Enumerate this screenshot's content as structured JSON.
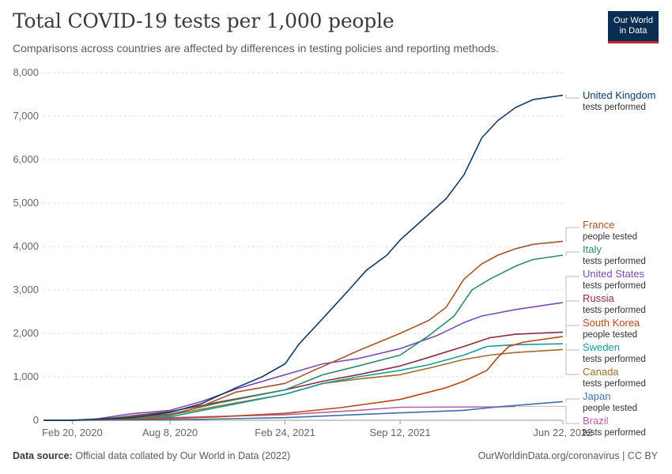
{
  "header": {
    "title": "Total COVID-19 tests per 1,000 people",
    "subtitle": "Comparisons across countries are affected by differences in testing policies and reporting methods.",
    "logo_line1": "Our World",
    "logo_line2": "in Data"
  },
  "footer": {
    "source_label": "Data source:",
    "source_text": "Official data collated by Our World in Data (2022)",
    "right_text": "OurWorldinData.org/coronavirus | CC BY"
  },
  "colors": {
    "brand": "#0a2d52",
    "accent": "#c0262d"
  },
  "chart_data": {
    "type": "line",
    "title": "Total COVID-19 tests per 1,000 people",
    "xlabel": "",
    "ylabel": "",
    "x_ticks": [
      "Feb 20, 2020",
      "Aug 8, 2020",
      "Feb 24, 2021",
      "Sep 12, 2021",
      "Jun 22, 2022"
    ],
    "y_ticks": [
      "0",
      "1,000",
      "2,000",
      "3,000",
      "4,000",
      "5,000",
      "6,000",
      "7,000",
      "8,000"
    ],
    "y_tick_values": [
      0,
      1000,
      2000,
      3000,
      4000,
      5000,
      6000,
      7000,
      8000
    ],
    "xlim": [
      "Jan 1, 2020",
      "Jun 22, 2022"
    ],
    "ylim": [
      0,
      8000
    ],
    "grid": "horizontal dashed",
    "legend": "right, labels at line ends",
    "series": [
      {
        "name": "United Kingdom",
        "note": "tests performed",
        "color": "#133a63",
        "points": [
          [
            "Jan 1, 2020",
            0
          ],
          [
            "Feb 20, 2020",
            0
          ],
          [
            "Jun 1, 2020",
            60
          ],
          [
            "Aug 8, 2020",
            180
          ],
          [
            "Oct 1, 2020",
            380
          ],
          [
            "Dec 1, 2020",
            750
          ],
          [
            "Jan 15, 2021",
            1000
          ],
          [
            "Feb 24, 2021",
            1300
          ],
          [
            "Mar 20, 2021",
            1750
          ],
          [
            "May 1, 2021",
            2350
          ],
          [
            "Jun 15, 2021",
            3000
          ],
          [
            "Jul 15, 2021",
            3450
          ],
          [
            "Aug 20, 2021",
            3800
          ],
          [
            "Sep 12, 2021",
            4150
          ],
          [
            "Oct 20, 2021",
            4600
          ],
          [
            "Dec 1, 2021",
            5100
          ],
          [
            "Jan 1, 2022",
            5650
          ],
          [
            "Feb 1, 2022",
            6500
          ],
          [
            "Mar 1, 2022",
            6900
          ],
          [
            "Apr 1, 2022",
            7200
          ],
          [
            "May 1, 2022",
            7380
          ],
          [
            "Jun 22, 2022",
            7480
          ]
        ]
      },
      {
        "name": "France",
        "note": "people tested",
        "color": "#a2562e",
        "points": [
          [
            "Jan 1, 2020",
            0
          ],
          [
            "Feb 20, 2020",
            0
          ],
          [
            "May 1, 2020",
            40
          ],
          [
            "Aug 8, 2020",
            110
          ],
          [
            "Oct 1, 2020",
            320
          ],
          [
            "Dec 1, 2020",
            650
          ],
          [
            "Feb 24, 2021",
            850
          ],
          [
            "Apr 15, 2021",
            1150
          ],
          [
            "Jul 1, 2021",
            1600
          ],
          [
            "Sep 12, 2021",
            2000
          ],
          [
            "Nov 1, 2021",
            2300
          ],
          [
            "Dec 1, 2021",
            2600
          ],
          [
            "Jan 1, 2022",
            3250
          ],
          [
            "Feb 1, 2022",
            3600
          ],
          [
            "Mar 1, 2022",
            3800
          ],
          [
            "Apr 1, 2022",
            3950
          ],
          [
            "May 1, 2022",
            4050
          ],
          [
            "Jun 22, 2022",
            4120
          ]
        ]
      },
      {
        "name": "Italy",
        "note": "tests performed",
        "color": "#2f8a67",
        "points": [
          [
            "Jan 1, 2020",
            0
          ],
          [
            "Feb 20, 2020",
            0
          ],
          [
            "Apr 15, 2020",
            40
          ],
          [
            "Aug 8, 2020",
            140
          ],
          [
            "Nov 1, 2020",
            400
          ],
          [
            "Feb 24, 2021",
            700
          ],
          [
            "May 1, 2021",
            1050
          ],
          [
            "Jul 1, 2021",
            1250
          ],
          [
            "Sep 12, 2021",
            1500
          ],
          [
            "Nov 1, 2021",
            1950
          ],
          [
            "Dec 15, 2021",
            2400
          ],
          [
            "Jan 15, 2022",
            3000
          ],
          [
            "Feb 15, 2022",
            3250
          ],
          [
            "Apr 1, 2022",
            3550
          ],
          [
            "May 1, 2022",
            3700
          ],
          [
            "Jun 22, 2022",
            3800
          ]
        ]
      },
      {
        "name": "United States",
        "note": "tests performed",
        "color": "#7a4bb3",
        "points": [
          [
            "Jan 1, 2020",
            0
          ],
          [
            "Feb 20, 2020",
            0
          ],
          [
            "Apr 1, 2020",
            30
          ],
          [
            "Jun 1, 2020",
            150
          ],
          [
            "Aug 8, 2020",
            230
          ],
          [
            "Oct 1, 2020",
            430
          ],
          [
            "Dec 1, 2020",
            720
          ],
          [
            "Feb 24, 2021",
            1050
          ],
          [
            "May 1, 2021",
            1300
          ],
          [
            "Jul 1, 2021",
            1420
          ],
          [
            "Sep 12, 2021",
            1650
          ],
          [
            "Nov 15, 2021",
            1950
          ],
          [
            "Jan 1, 2022",
            2250
          ],
          [
            "Feb 1, 2022",
            2400
          ],
          [
            "Apr 1, 2022",
            2550
          ],
          [
            "Jun 22, 2022",
            2710
          ]
        ]
      },
      {
        "name": "Russia",
        "note": "tests performed",
        "color": "#8a2d3a",
        "points": [
          [
            "Jan 1, 2020",
            0
          ],
          [
            "Feb 20, 2020",
            0
          ],
          [
            "Apr 15, 2020",
            30
          ],
          [
            "Jun 1, 2020",
            100
          ],
          [
            "Aug 8, 2020",
            200
          ],
          [
            "Nov 1, 2020",
            420
          ],
          [
            "Feb 24, 2021",
            700
          ],
          [
            "May 1, 2021",
            900
          ],
          [
            "Jul 1, 2021",
            1050
          ],
          [
            "Sep 12, 2021",
            1250
          ],
          [
            "Nov 1, 2021",
            1450
          ],
          [
            "Jan 1, 2022",
            1700
          ],
          [
            "Feb 15, 2022",
            1900
          ],
          [
            "Apr 1, 2022",
            1980
          ],
          [
            "Jun 22, 2022",
            2030
          ]
        ]
      },
      {
        "name": "South Korea",
        "note": "people tested",
        "color": "#b9451b",
        "points": [
          [
            "Jan 1, 2020",
            0
          ],
          [
            "Feb 20, 2020",
            5
          ],
          [
            "May 1, 2020",
            20
          ],
          [
            "Aug 8, 2020",
            40
          ],
          [
            "Nov 1, 2020",
            80
          ],
          [
            "Feb 24, 2021",
            160
          ],
          [
            "Jun 1, 2021",
            290
          ],
          [
            "Sep 12, 2021",
            480
          ],
          [
            "Dec 1, 2021",
            750
          ],
          [
            "Jan 1, 2022",
            900
          ],
          [
            "Feb 10, 2022",
            1150
          ],
          [
            "Mar 1, 2022",
            1450
          ],
          [
            "Mar 20, 2022",
            1700
          ],
          [
            "Apr 15, 2022",
            1800
          ],
          [
            "Jun 22, 2022",
            1930
          ]
        ]
      },
      {
        "name": "Sweden",
        "note": "tests performed",
        "color": "#189a9a",
        "points": [
          [
            "Jan 1, 2020",
            0
          ],
          [
            "Feb 20, 2020",
            0
          ],
          [
            "May 1, 2020",
            20
          ],
          [
            "Aug 8, 2020",
            80
          ],
          [
            "Nov 1, 2020",
            300
          ],
          [
            "Feb 24, 2021",
            600
          ],
          [
            "May 1, 2021",
            850
          ],
          [
            "Jul 1, 2021",
            1000
          ],
          [
            "Sep 12, 2021",
            1150
          ],
          [
            "Nov 1, 2021",
            1280
          ],
          [
            "Jan 1, 2022",
            1500
          ],
          [
            "Feb 10, 2022",
            1700
          ],
          [
            "Apr 1, 2022",
            1740
          ],
          [
            "Jun 22, 2022",
            1760
          ]
        ]
      },
      {
        "name": "Canada",
        "note": "tests performed",
        "color": "#9a6f2b",
        "points": [
          [
            "Jan 1, 2020",
            0
          ],
          [
            "Feb 20, 2020",
            0
          ],
          [
            "May 1, 2020",
            30
          ],
          [
            "Aug 8, 2020",
            120
          ],
          [
            "Nov 1, 2020",
            330
          ],
          [
            "Feb 24, 2021",
            600
          ],
          [
            "May 1, 2021",
            850
          ],
          [
            "Jul 1, 2021",
            950
          ],
          [
            "Sep 12, 2021",
            1050
          ],
          [
            "Nov 1, 2021",
            1200
          ],
          [
            "Jan 1, 2022",
            1400
          ],
          [
            "Feb 15, 2022",
            1500
          ],
          [
            "Apr 1, 2022",
            1560
          ],
          [
            "Jun 22, 2022",
            1630
          ]
        ]
      },
      {
        "name": "Japan",
        "note": "people tested",
        "color": "#3f6fa6",
        "points": [
          [
            "Jan 1, 2020",
            0
          ],
          [
            "Feb 20, 2020",
            0
          ],
          [
            "Aug 8, 2020",
            10
          ],
          [
            "Feb 24, 2021",
            60
          ],
          [
            "Sep 12, 2021",
            170
          ],
          [
            "Jan 1, 2022",
            230
          ],
          [
            "Mar 1, 2022",
            310
          ],
          [
            "Jun 22, 2022",
            430
          ]
        ]
      },
      {
        "name": "Brazil",
        "note": "tests performed",
        "color": "#b95fa8",
        "points": [
          [
            "Jan 1, 2020",
            0
          ],
          [
            "Feb 20, 2020",
            0
          ],
          [
            "Aug 8, 2020",
            60
          ],
          [
            "Feb 24, 2021",
            130
          ],
          [
            "Jul 1, 2021",
            230
          ],
          [
            "Sep 12, 2021",
            300
          ],
          [
            "Mar 1, 2022",
            310
          ],
          [
            "Apr 1, 2022",
            320
          ]
        ]
      }
    ]
  }
}
